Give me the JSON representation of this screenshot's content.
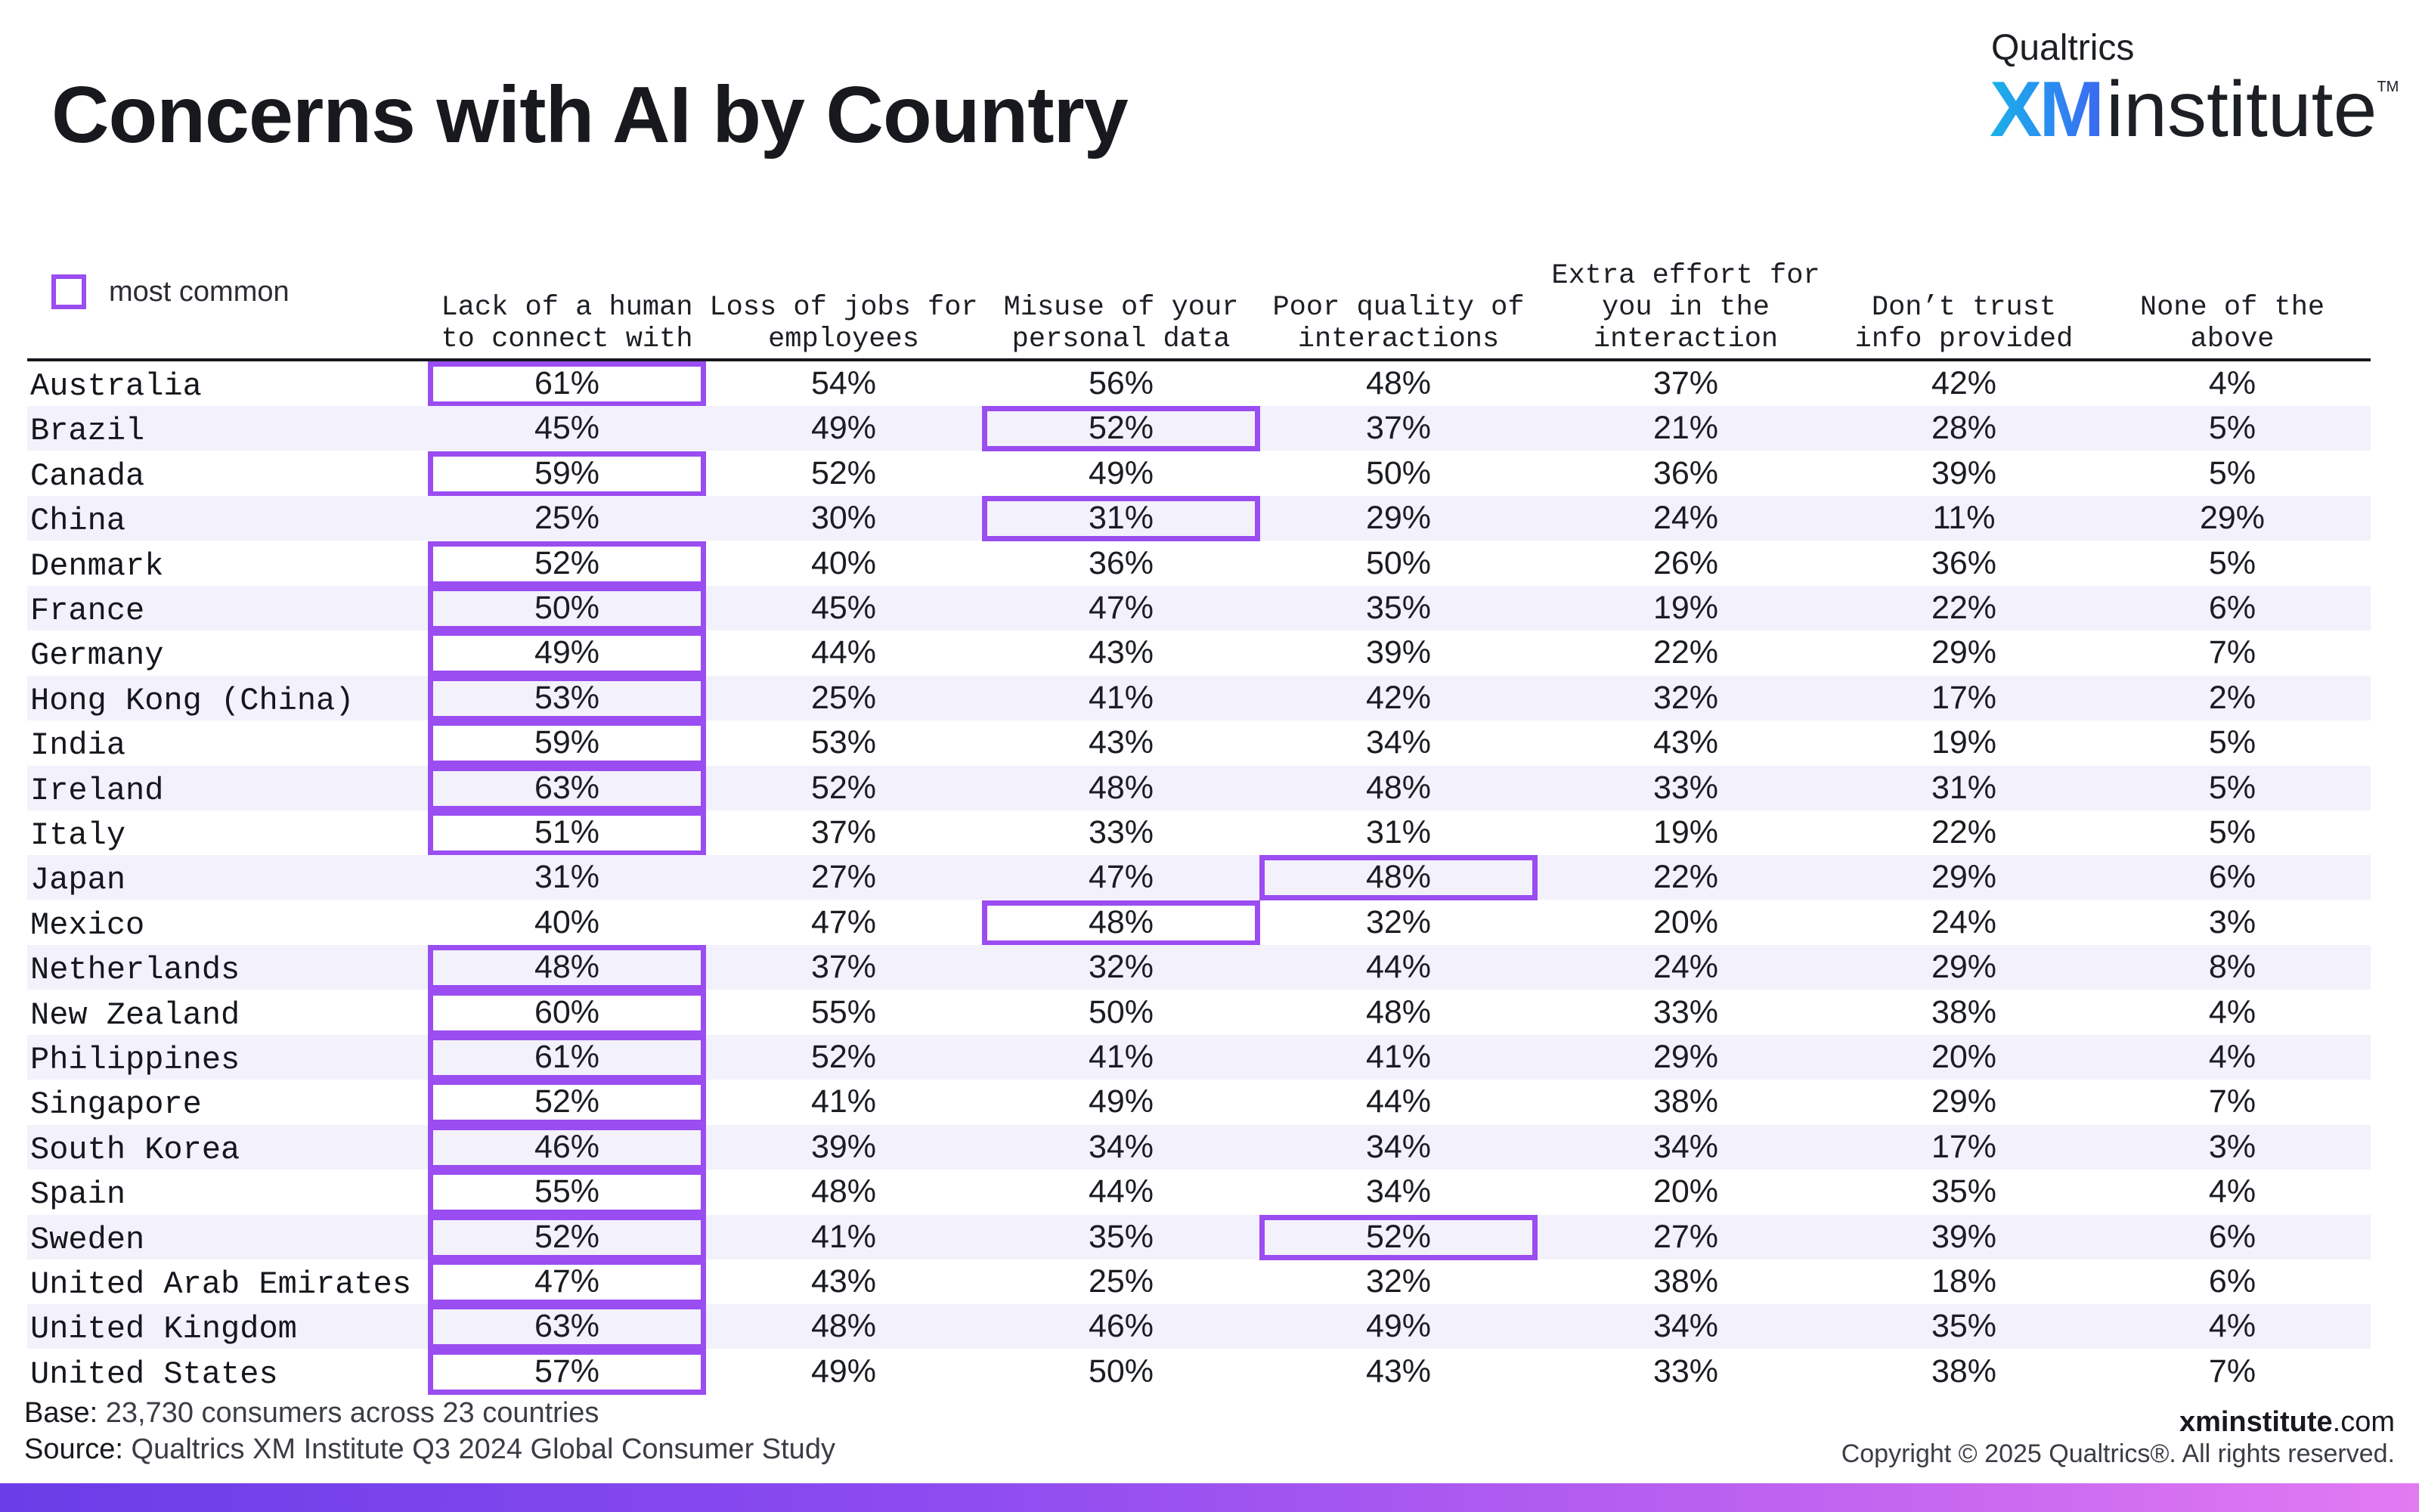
{
  "title": "Concerns with AI by Country",
  "brand": {
    "top": "Qualtrics",
    "xm": "XM",
    "institute": "institute",
    "tm": "TM"
  },
  "legend": {
    "label": "most common",
    "color": "#9a4df0"
  },
  "chart_data": {
    "type": "table",
    "columns": [
      "Lack of a human\nto connect with",
      "Loss of jobs for\nemployees",
      "Misuse of your\npersonal data",
      "Poor quality of\ninteractions",
      "Extra effort for\nyou in the\ninteraction",
      "Don’t trust\ninfo provided",
      "None of the\nabove"
    ],
    "rows": [
      {
        "country": "Australia",
        "values": [
          "61%",
          "54%",
          "56%",
          "48%",
          "37%",
          "42%",
          "4%"
        ],
        "most_common": [
          0
        ]
      },
      {
        "country": "Brazil",
        "values": [
          "45%",
          "49%",
          "52%",
          "37%",
          "21%",
          "28%",
          "5%"
        ],
        "most_common": [
          2
        ]
      },
      {
        "country": "Canada",
        "values": [
          "59%",
          "52%",
          "49%",
          "50%",
          "36%",
          "39%",
          "5%"
        ],
        "most_common": [
          0
        ]
      },
      {
        "country": "China",
        "values": [
          "25%",
          "30%",
          "31%",
          "29%",
          "24%",
          "11%",
          "29%"
        ],
        "most_common": [
          2
        ]
      },
      {
        "country": "Denmark",
        "values": [
          "52%",
          "40%",
          "36%",
          "50%",
          "26%",
          "36%",
          "5%"
        ],
        "most_common": [
          0
        ]
      },
      {
        "country": "France",
        "values": [
          "50%",
          "45%",
          "47%",
          "35%",
          "19%",
          "22%",
          "6%"
        ],
        "most_common": [
          0
        ]
      },
      {
        "country": "Germany",
        "values": [
          "49%",
          "44%",
          "43%",
          "39%",
          "22%",
          "29%",
          "7%"
        ],
        "most_common": [
          0
        ]
      },
      {
        "country": "Hong Kong (China)",
        "values": [
          "53%",
          "25%",
          "41%",
          "42%",
          "32%",
          "17%",
          "2%"
        ],
        "most_common": [
          0
        ]
      },
      {
        "country": "India",
        "values": [
          "59%",
          "53%",
          "43%",
          "34%",
          "43%",
          "19%",
          "5%"
        ],
        "most_common": [
          0
        ]
      },
      {
        "country": "Ireland",
        "values": [
          "63%",
          "52%",
          "48%",
          "48%",
          "33%",
          "31%",
          "5%"
        ],
        "most_common": [
          0
        ]
      },
      {
        "country": "Italy",
        "values": [
          "51%",
          "37%",
          "33%",
          "31%",
          "19%",
          "22%",
          "5%"
        ],
        "most_common": [
          0
        ]
      },
      {
        "country": "Japan",
        "values": [
          "31%",
          "27%",
          "47%",
          "48%",
          "22%",
          "29%",
          "6%"
        ],
        "most_common": [
          3
        ]
      },
      {
        "country": "Mexico",
        "values": [
          "40%",
          "47%",
          "48%",
          "32%",
          "20%",
          "24%",
          "3%"
        ],
        "most_common": [
          2
        ]
      },
      {
        "country": "Netherlands",
        "values": [
          "48%",
          "37%",
          "32%",
          "44%",
          "24%",
          "29%",
          "8%"
        ],
        "most_common": [
          0
        ]
      },
      {
        "country": "New Zealand",
        "values": [
          "60%",
          "55%",
          "50%",
          "48%",
          "33%",
          "38%",
          "4%"
        ],
        "most_common": [
          0
        ]
      },
      {
        "country": "Philippines",
        "values": [
          "61%",
          "52%",
          "41%",
          "41%",
          "29%",
          "20%",
          "4%"
        ],
        "most_common": [
          0
        ]
      },
      {
        "country": "Singapore",
        "values": [
          "52%",
          "41%",
          "49%",
          "44%",
          "38%",
          "29%",
          "7%"
        ],
        "most_common": [
          0
        ]
      },
      {
        "country": "South Korea",
        "values": [
          "46%",
          "39%",
          "34%",
          "34%",
          "34%",
          "17%",
          "3%"
        ],
        "most_common": [
          0
        ]
      },
      {
        "country": "Spain",
        "values": [
          "55%",
          "48%",
          "44%",
          "34%",
          "20%",
          "35%",
          "4%"
        ],
        "most_common": [
          0
        ]
      },
      {
        "country": "Sweden",
        "values": [
          "52%",
          "41%",
          "35%",
          "52%",
          "27%",
          "39%",
          "6%"
        ],
        "most_common": [
          0,
          3
        ]
      },
      {
        "country": "United Arab Emirates",
        "values": [
          "47%",
          "43%",
          "25%",
          "32%",
          "38%",
          "18%",
          "6%"
        ],
        "most_common": [
          0
        ]
      },
      {
        "country": "United Kingdom",
        "values": [
          "63%",
          "48%",
          "46%",
          "49%",
          "34%",
          "35%",
          "4%"
        ],
        "most_common": [
          0
        ]
      },
      {
        "country": "United States",
        "values": [
          "57%",
          "49%",
          "50%",
          "43%",
          "33%",
          "38%",
          "7%"
        ],
        "most_common": [
          0
        ]
      }
    ]
  },
  "footer": {
    "base_key": "Base:",
    "base_text": " 23,730 consumers across 23 countries",
    "source_key": "Source:",
    "source_text": " Qualtrics XM Institute Q3 2024 Global Consumer Study",
    "site_bold": "xminstitute",
    "site_rest": ".com",
    "copyright": "Copyright © 2025 Qualtrics®. All rights reserved."
  }
}
